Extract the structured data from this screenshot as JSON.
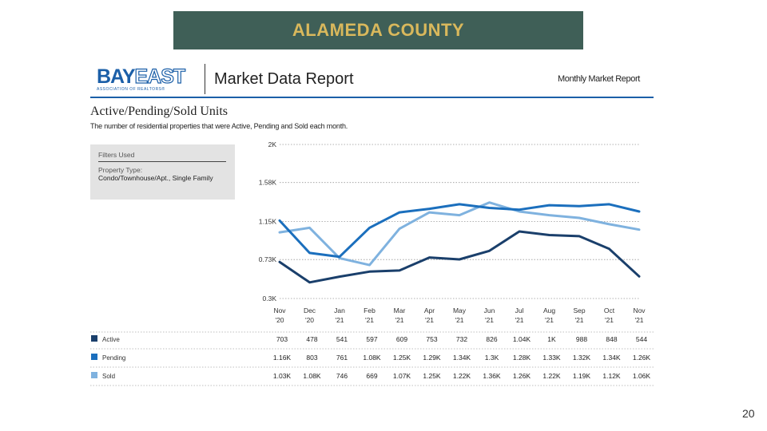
{
  "slide": {
    "banner_title": "ALAMEDA COUNTY",
    "page_number": "20"
  },
  "header": {
    "logo_word_1": "BAY",
    "logo_word_2": "EAST",
    "logo_sub": "ASSOCIATION OF REALTORS®",
    "report_title": "Market Data Report",
    "report_type": "Monthly Market Report"
  },
  "section": {
    "title": "Active/Pending/Sold Units",
    "subtitle": "The number of residential properties that were Active, Pending and Sold each month."
  },
  "filters": {
    "heading": "Filters Used",
    "property_type_label": "Property Type:",
    "property_type_value": "Condo/Townhouse/Apt., Single Family"
  },
  "colors": {
    "banner_bg": "#3f5f57",
    "banner_text": "#d9b85c",
    "active": "#1a3f6b",
    "pending": "#1b6fbd",
    "sold": "#7fb2df"
  },
  "chart_data": {
    "type": "line",
    "title": "",
    "xlabel": "",
    "ylabel": "",
    "ylim": [
      300,
      2000
    ],
    "y_ticks": [
      {
        "value": 2000,
        "label": "2K"
      },
      {
        "value": 1580,
        "label": "1.58K"
      },
      {
        "value": 1150,
        "label": "1.15K"
      },
      {
        "value": 730,
        "label": "0.73K"
      },
      {
        "value": 300,
        "label": "0.3K"
      }
    ],
    "x": [
      {
        "month": "Nov",
        "year": "'20"
      },
      {
        "month": "Dec",
        "year": "'20"
      },
      {
        "month": "Jan",
        "year": "'21"
      },
      {
        "month": "Feb",
        "year": "'21"
      },
      {
        "month": "Mar",
        "year": "'21"
      },
      {
        "month": "Apr",
        "year": "'21"
      },
      {
        "month": "May",
        "year": "'21"
      },
      {
        "month": "Jun",
        "year": "'21"
      },
      {
        "month": "Jul",
        "year": "'21"
      },
      {
        "month": "Aug",
        "year": "'21"
      },
      {
        "month": "Sep",
        "year": "'21"
      },
      {
        "month": "Oct",
        "year": "'21"
      },
      {
        "month": "Nov",
        "year": "'21"
      }
    ],
    "grid": "horizontal dotted",
    "legend": "table below chart",
    "series": [
      {
        "name": "Active",
        "color": "#1a3f6b",
        "values": [
          703,
          478,
          541,
          597,
          609,
          753,
          732,
          826,
          1040,
          1000,
          988,
          848,
          544
        ],
        "labels": [
          "703",
          "478",
          "541",
          "597",
          "609",
          "753",
          "732",
          "826",
          "1.04K",
          "1K",
          "988",
          "848",
          "544"
        ]
      },
      {
        "name": "Pending",
        "color": "#1b6fbd",
        "values": [
          1160,
          803,
          761,
          1080,
          1250,
          1290,
          1340,
          1300,
          1280,
          1330,
          1320,
          1340,
          1260
        ],
        "labels": [
          "1.16K",
          "803",
          "761",
          "1.08K",
          "1.25K",
          "1.29K",
          "1.34K",
          "1.3K",
          "1.28K",
          "1.33K",
          "1.32K",
          "1.34K",
          "1.26K"
        ]
      },
      {
        "name": "Sold",
        "color": "#7fb2df",
        "values": [
          1030,
          1080,
          746,
          669,
          1070,
          1250,
          1220,
          1360,
          1260,
          1220,
          1190,
          1120,
          1060
        ],
        "labels": [
          "1.03K",
          "1.08K",
          "746",
          "669",
          "1.07K",
          "1.25K",
          "1.22K",
          "1.36K",
          "1.26K",
          "1.22K",
          "1.19K",
          "1.12K",
          "1.06K"
        ]
      }
    ]
  }
}
